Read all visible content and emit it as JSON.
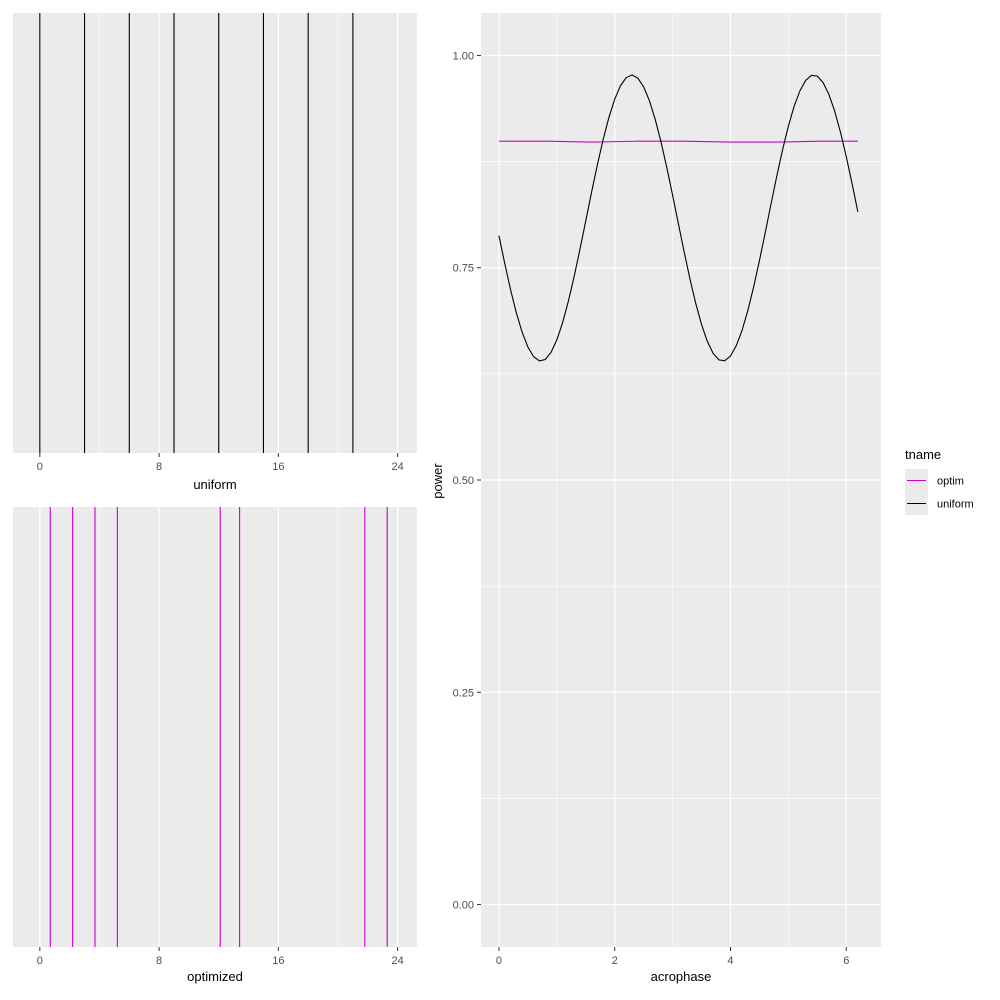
{
  "chart_data": [
    {
      "type": "vline",
      "xlabel": "uniform",
      "xlim": [
        -1.8,
        25.3
      ],
      "x_ticks": [
        0,
        8,
        16,
        24
      ],
      "x_tick_labels": [
        "0",
        "8",
        "16",
        "24"
      ],
      "grid": true,
      "color": "#000000",
      "x": [
        0,
        3,
        6,
        9,
        12,
        15,
        18,
        21
      ]
    },
    {
      "type": "vline",
      "xlabel": "optimized",
      "xlim": [
        -1.8,
        25.3
      ],
      "x_ticks": [
        0,
        8,
        16,
        24
      ],
      "x_tick_labels": [
        "0",
        "8",
        "16",
        "24"
      ],
      "grid": true,
      "color": "#CC00CC",
      "x": [
        0.7,
        2.2,
        3.7,
        5.2,
        12.1,
        13.4,
        21.8,
        23.3
      ]
    },
    {
      "type": "line",
      "xlabel": "acrophase",
      "ylabel": "power",
      "xlim": [
        -0.31,
        6.6
      ],
      "ylim": [
        -0.05,
        1.05
      ],
      "x_ticks": [
        0,
        2,
        4,
        6
      ],
      "x_tick_labels": [
        "0",
        "2",
        "4",
        "6"
      ],
      "y_ticks": [
        0,
        0.25,
        0.5,
        0.75,
        1.0
      ],
      "y_tick_labels": [
        "0.00",
        "0.25",
        "0.50",
        "0.75",
        "1.00"
      ],
      "grid": true,
      "legend": {
        "title": "tname",
        "placement": "right",
        "entries": [
          {
            "label": "optim",
            "color": "#CC00CC"
          },
          {
            "label": "uniform",
            "color": "#000000"
          }
        ]
      },
      "series": [
        {
          "name": "optim",
          "color": "#CC00CC",
          "x": [
            0,
            0.8,
            1.6,
            2.4,
            3.2,
            4.0,
            4.8,
            5.6,
            6.2
          ],
          "y": [
            0.899,
            0.899,
            0.898,
            0.899,
            0.899,
            0.898,
            0.898,
            0.899,
            0.899
          ]
        },
        {
          "name": "uniform",
          "color": "#000000",
          "formula": "a - b*cos(2*(x - 0.724))",
          "mid": 0.8085,
          "amp": 0.1685,
          "phase": 0.724,
          "xrange": [
            0,
            6.2
          ],
          "points": 63
        }
      ]
    }
  ]
}
